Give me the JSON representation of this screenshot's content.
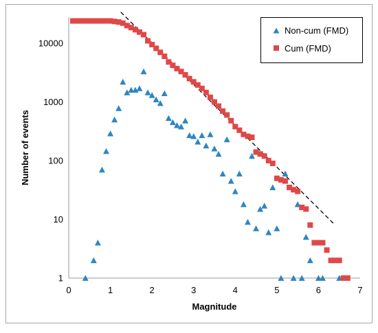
{
  "chart_data": {
    "type": "scatter",
    "xlabel": "Magnitude",
    "ylabel": "Number of events",
    "xlim": [
      0,
      7
    ],
    "ylim": [
      1,
      30000
    ],
    "yscale": "log",
    "xticks": [
      "0",
      "1",
      "2",
      "3",
      "4",
      "5",
      "6",
      "7"
    ],
    "yticks": [
      "1",
      "10",
      "100",
      "1000",
      "10000"
    ],
    "legend_position": "top-right",
    "series": [
      {
        "name": "Non-cum (FMD)",
        "marker": "triangle",
        "color": "#2E86C1",
        "x": [
          0.4,
          0.6,
          0.7,
          0.8,
          0.9,
          1.0,
          1.1,
          1.2,
          1.3,
          1.4,
          1.5,
          1.6,
          1.7,
          1.8,
          1.9,
          2.0,
          2.1,
          2.2,
          2.3,
          2.4,
          2.5,
          2.6,
          2.7,
          2.8,
          2.9,
          3.0,
          3.1,
          3.2,
          3.3,
          3.4,
          3.5,
          3.6,
          3.7,
          3.8,
          3.9,
          4.0,
          4.1,
          4.2,
          4.3,
          4.4,
          4.5,
          4.6,
          4.7,
          4.8,
          4.9,
          5.0,
          5.1,
          5.2,
          5.4,
          5.5,
          5.6,
          5.7,
          5.8,
          6.0,
          6.1,
          6.5
        ],
        "y": [
          1,
          2,
          4,
          70,
          145,
          290,
          500,
          780,
          2200,
          1450,
          1600,
          1600,
          1700,
          3300,
          1450,
          1300,
          1100,
          950,
          1400,
          530,
          450,
          400,
          380,
          480,
          270,
          260,
          210,
          270,
          180,
          280,
          160,
          130,
          60,
          230,
          45,
          30,
          60,
          18,
          9,
          120,
          7,
          15,
          17,
          6,
          35,
          7,
          1,
          60,
          1,
          18,
          1,
          5,
          2,
          1,
          1,
          1
        ]
      },
      {
        "name": "Cum (FMD)",
        "marker": "square",
        "color": "#E04848",
        "x": [
          0.1,
          0.2,
          0.3,
          0.4,
          0.5,
          0.6,
          0.7,
          0.8,
          0.9,
          1.0,
          1.1,
          1.2,
          1.3,
          1.4,
          1.5,
          1.6,
          1.7,
          1.8,
          1.9,
          2.0,
          2.1,
          2.2,
          2.3,
          2.4,
          2.5,
          2.6,
          2.7,
          2.8,
          2.9,
          3.0,
          3.1,
          3.2,
          3.3,
          3.4,
          3.5,
          3.6,
          3.7,
          3.8,
          3.9,
          4.0,
          4.1,
          4.2,
          4.3,
          4.4,
          4.5,
          4.6,
          4.7,
          4.8,
          4.9,
          5.0,
          5.1,
          5.2,
          5.3,
          5.4,
          5.5,
          5.6,
          5.7,
          5.8,
          5.9,
          6.0,
          6.1,
          6.2,
          6.3,
          6.4,
          6.5,
          6.6,
          6.7
        ],
        "y": [
          24000,
          24000,
          24000,
          24000,
          24000,
          24000,
          24000,
          24000,
          24000,
          24000,
          23500,
          23000,
          22000,
          20000,
          18500,
          17000,
          15500,
          14000,
          11000,
          9500,
          8200,
          7000,
          6000,
          4800,
          4200,
          3700,
          3300,
          2900,
          2500,
          2200,
          1950,
          1700,
          1450,
          1200,
          1000,
          850,
          700,
          600,
          480,
          380,
          330,
          280,
          260,
          250,
          140,
          130,
          120,
          100,
          90,
          50,
          47,
          45,
          35,
          32,
          30,
          16,
          15,
          8,
          4,
          4,
          4,
          3,
          2,
          2,
          2,
          1,
          1
        ]
      }
    ],
    "fit_line": {
      "style": "dashed",
      "color": "#000000",
      "x": [
        1.25,
        6.4
      ],
      "y": [
        34000,
        8
      ]
    }
  }
}
